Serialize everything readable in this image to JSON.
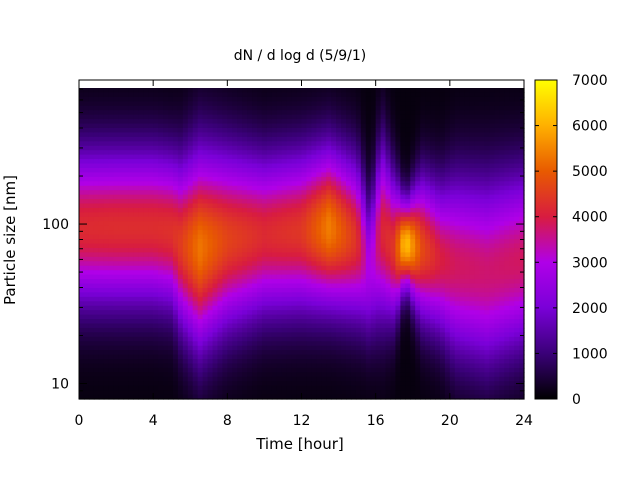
{
  "chart_data": {
    "type": "heatmap",
    "title": "dN / d log d (5/9/1)",
    "xlabel": "Time [hour]",
    "ylabel": "Particle size [nm]",
    "x_range": [
      0,
      24
    ],
    "x_ticks": [
      0,
      4,
      8,
      12,
      16,
      20,
      24
    ],
    "y_scale": "log",
    "y_range": [
      8,
      800
    ],
    "y_ticks": [
      10,
      100
    ],
    "colorbar": {
      "range": [
        0,
        7000
      ],
      "ticks": [
        0,
        1000,
        2000,
        3000,
        4000,
        5000,
        6000,
        7000
      ],
      "palette": [
        "#000000",
        "#3a0078",
        "#7a00d8",
        "#b000e8",
        "#d81c40",
        "#e85a00",
        "#ffb000",
        "#ffff00"
      ]
    },
    "time_hours": [
      0,
      2,
      4,
      5,
      5.5,
      6.5,
      8,
      10,
      12,
      13.5,
      15,
      15.7,
      16.3,
      17,
      17.6,
      18.5,
      19.5,
      20.3,
      22,
      24
    ],
    "peak_diameter_nm": [
      95,
      95,
      95,
      90,
      75,
      70,
      80,
      85,
      90,
      95,
      80,
      50,
      90,
      70,
      75,
      70,
      60,
      55,
      50,
      60
    ],
    "peak_concentration": [
      4100,
      4150,
      4150,
      4200,
      4400,
      5200,
      4500,
      4100,
      4300,
      5300,
      4200,
      2600,
      4000,
      4300,
      6200,
      4600,
      3900,
      3700,
      3600,
      3700
    ],
    "log_width": [
      0.33,
      0.33,
      0.33,
      0.33,
      0.36,
      0.42,
      0.38,
      0.34,
      0.34,
      0.34,
      0.34,
      0.3,
      0.38,
      0.3,
      0.17,
      0.3,
      0.32,
      0.38,
      0.4,
      0.38
    ]
  }
}
